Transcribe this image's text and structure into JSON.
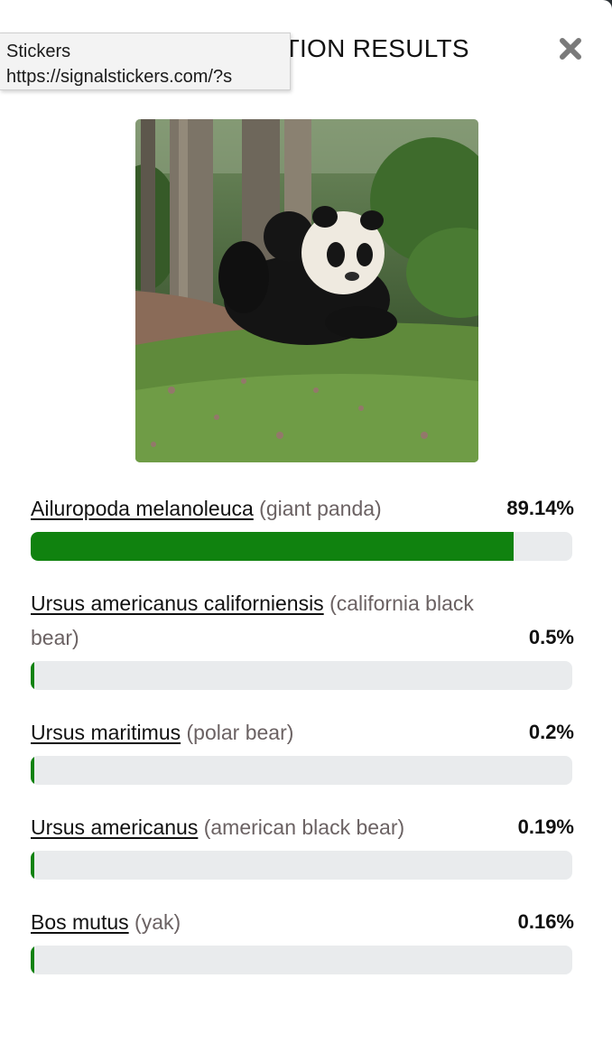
{
  "modal": {
    "title": "IDENTIFICATION RESULTS",
    "close_icon": "close-x-icon"
  },
  "tooltip": {
    "line1": "Stickers",
    "line2": "https://signalstickers.com/?s"
  },
  "colors": {
    "bar_fill": "#10820f",
    "bar_track": "#e9ebed",
    "common_name": "#6b6263"
  },
  "results": [
    {
      "scientific": "Ailuropoda melanoleuca",
      "common": "(giant panda)",
      "percent": "89.14%",
      "value": 0.8914
    },
    {
      "scientific": "Ursus americanus californiensis",
      "common": "(california black bear)",
      "percent": "0.5%",
      "value": 0.005
    },
    {
      "scientific": "Ursus maritimus",
      "common": "(polar bear)",
      "percent": "0.2%",
      "value": 0.002
    },
    {
      "scientific": "Ursus americanus",
      "common": "(american black bear)",
      "percent": "0.19%",
      "value": 0.0019
    },
    {
      "scientific": "Bos mutus",
      "common": "(yak)",
      "percent": "0.16%",
      "value": 0.0016
    }
  ]
}
